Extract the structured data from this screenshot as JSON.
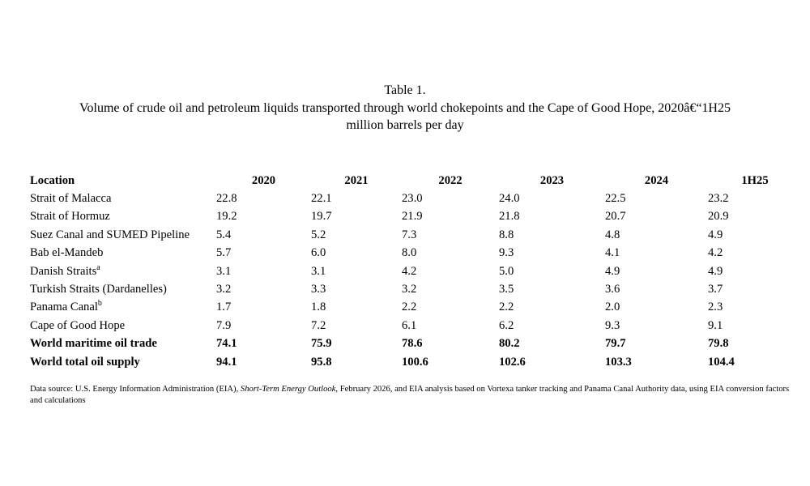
{
  "title": {
    "line1": "Table 1.",
    "line2": "Volume of crude oil and petroleum liquids transported through world chokepoints and the Cape of Good Hope, 2020â€“1H25",
    "line3": "million barrels per day"
  },
  "table": {
    "columns": [
      "Location",
      "2020",
      "2021",
      "2022",
      "2023",
      "2024",
      "1H25"
    ],
    "rows": [
      {
        "location": "Strait of Malacca",
        "sup": "",
        "bold": false,
        "values": [
          "22.8",
          "22.1",
          "23.0",
          "24.0",
          "22.5",
          "23.2"
        ]
      },
      {
        "location": "Strait of Hormuz",
        "sup": "",
        "bold": false,
        "values": [
          "19.2",
          "19.7",
          "21.9",
          "21.8",
          "20.7",
          "20.9"
        ]
      },
      {
        "location": "Suez Canal and SUMED Pipeline",
        "sup": "",
        "bold": false,
        "values": [
          "5.4",
          "5.2",
          "7.3",
          "8.8",
          "4.8",
          "4.9"
        ]
      },
      {
        "location": "Bab el-Mandeb",
        "sup": "",
        "bold": false,
        "values": [
          "5.7",
          "6.0",
          "8.0",
          "9.3",
          "4.1",
          "4.2"
        ]
      },
      {
        "location": "Danish Straits",
        "sup": "a",
        "bold": false,
        "values": [
          "3.1",
          "3.1",
          "4.2",
          "5.0",
          "4.9",
          "4.9"
        ]
      },
      {
        "location": "Turkish Straits (Dardanelles)",
        "sup": "",
        "bold": false,
        "values": [
          "3.2",
          "3.3",
          "3.2",
          "3.5",
          "3.6",
          "3.7"
        ]
      },
      {
        "location": "Panama Canal",
        "sup": "b",
        "bold": false,
        "values": [
          "1.7",
          "1.8",
          "2.2",
          "2.2",
          "2.0",
          "2.3"
        ]
      },
      {
        "location": "Cape of Good Hope",
        "sup": "",
        "bold": false,
        "values": [
          "7.9",
          "7.2",
          "6.1",
          "6.2",
          "9.3",
          "9.1"
        ]
      },
      {
        "location": "World maritime oil trade",
        "sup": "",
        "bold": true,
        "values": [
          "74.1",
          "75.9",
          "78.6",
          "80.2",
          "79.7",
          "79.8"
        ]
      },
      {
        "location": "World total oil supply",
        "sup": "",
        "bold": true,
        "values": [
          "94.1",
          "95.8",
          "100.6",
          "102.6",
          "103.3",
          "104.4"
        ]
      }
    ]
  },
  "footnote": {
    "prefix": "Data source: U.S. Energy Information Administration (EIA), ",
    "italic": "Short-Term Energy Outlook",
    "suffix": ", February 2026, and EIA analysis based on Vortexa tanker tracking and Panama Canal Authority data, using EIA conversion factors and calculations"
  }
}
